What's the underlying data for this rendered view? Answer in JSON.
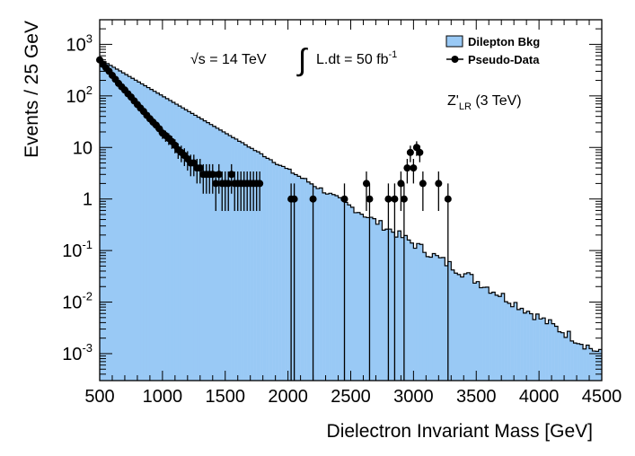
{
  "chart_data": {
    "type": "histogram",
    "title": "",
    "xlabel": "Dielectron Invariant Mass [GeV]",
    "ylabel": "Events / 25 GeV",
    "xlim": [
      500,
      4500
    ],
    "ylim": [
      0.0003,
      3000
    ],
    "yscale": "log",
    "bin_width": 25,
    "x_ticks": [
      500,
      1000,
      1500,
      2000,
      2500,
      3000,
      3500,
      4000,
      4500
    ],
    "x_tick_labels": [
      "500",
      "1000",
      "1500",
      "2000",
      "2500",
      "3000",
      "3500",
      "4000",
      "4500"
    ],
    "y_ticks": [
      0.001,
      0.01,
      0.1,
      1,
      10,
      100,
      1000
    ],
    "y_tick_labels": [
      {
        "mantissa": "10",
        "exponent": "-3"
      },
      {
        "mantissa": "10",
        "exponent": "-2"
      },
      {
        "mantissa": "10",
        "exponent": "-1"
      },
      {
        "mantissa": "1",
        "exponent": ""
      },
      {
        "mantissa": "10",
        "exponent": ""
      },
      {
        "mantissa": "10",
        "exponent": "2"
      },
      {
        "mantissa": "10",
        "exponent": "3"
      }
    ],
    "annotations": {
      "energy": "√s = 14 TeV",
      "lumi_integral": "∫",
      "lumi_text": "L.dt = 50 fb",
      "lumi_exp": "-1",
      "signal_base": "Z'",
      "signal_sub": "LR",
      "signal_rest": " (3 TeV)"
    },
    "legend": {
      "position": "top-right",
      "entries": [
        "Dilepton Bkg",
        "Pseudo-Data"
      ]
    },
    "colors": {
      "background_fill": "#99c9f5",
      "line": "#000000",
      "frame": "#000000"
    },
    "series": [
      {
        "name": "Dilepton Bkg",
        "kind": "step-filled",
        "model": "exponential",
        "y_at_500": 500,
        "decay_per_gev": 0.0033,
        "fluctuation": 0.22,
        "random_seed": 7,
        "y_floor": 0.00045
      },
      {
        "name": "Pseudo-Data",
        "kind": "points-with-errors",
        "points": [
          {
            "x": 500,
            "y": 500
          },
          {
            "x": 525,
            "y": 410
          },
          {
            "x": 550,
            "y": 350
          },
          {
            "x": 575,
            "y": 300
          },
          {
            "x": 600,
            "y": 250
          },
          {
            "x": 625,
            "y": 210
          },
          {
            "x": 650,
            "y": 175
          },
          {
            "x": 675,
            "y": 150
          },
          {
            "x": 700,
            "y": 130
          },
          {
            "x": 725,
            "y": 110
          },
          {
            "x": 750,
            "y": 95
          },
          {
            "x": 775,
            "y": 80
          },
          {
            "x": 800,
            "y": 68
          },
          {
            "x": 825,
            "y": 58
          },
          {
            "x": 850,
            "y": 50
          },
          {
            "x": 875,
            "y": 42
          },
          {
            "x": 900,
            "y": 36
          },
          {
            "x": 925,
            "y": 31
          },
          {
            "x": 950,
            "y": 27
          },
          {
            "x": 975,
            "y": 23
          },
          {
            "x": 1000,
            "y": 19
          },
          {
            "x": 1025,
            "y": 17
          },
          {
            "x": 1050,
            "y": 15
          },
          {
            "x": 1075,
            "y": 13
          },
          {
            "x": 1100,
            "y": 11
          },
          {
            "x": 1125,
            "y": 9
          },
          {
            "x": 1150,
            "y": 8
          },
          {
            "x": 1175,
            "y": 7
          },
          {
            "x": 1200,
            "y": 6
          },
          {
            "x": 1225,
            "y": 5
          },
          {
            "x": 1250,
            "y": 5
          },
          {
            "x": 1275,
            "y": 4
          },
          {
            "x": 1300,
            "y": 4
          },
          {
            "x": 1325,
            "y": 3
          },
          {
            "x": 1350,
            "y": 3
          },
          {
            "x": 1375,
            "y": 3
          },
          {
            "x": 1400,
            "y": 3
          },
          {
            "x": 1425,
            "y": 2
          },
          {
            "x": 1450,
            "y": 3
          },
          {
            "x": 1475,
            "y": 2
          },
          {
            "x": 1500,
            "y": 2
          },
          {
            "x": 1525,
            "y": 2
          },
          {
            "x": 1550,
            "y": 3
          },
          {
            "x": 1575,
            "y": 2
          },
          {
            "x": 1600,
            "y": 2
          },
          {
            "x": 1625,
            "y": 2
          },
          {
            "x": 1650,
            "y": 2
          },
          {
            "x": 1675,
            "y": 2
          },
          {
            "x": 1700,
            "y": 2
          },
          {
            "x": 1725,
            "y": 2
          },
          {
            "x": 1750,
            "y": 2
          },
          {
            "x": 1775,
            "y": 2
          },
          {
            "x": 2025,
            "y": 1
          },
          {
            "x": 2050,
            "y": 1
          },
          {
            "x": 2200,
            "y": 1
          },
          {
            "x": 2450,
            "y": 1
          },
          {
            "x": 2625,
            "y": 2
          },
          {
            "x": 2650,
            "y": 1
          },
          {
            "x": 2800,
            "y": 1
          },
          {
            "x": 2850,
            "y": 1
          },
          {
            "x": 2900,
            "y": 2
          },
          {
            "x": 2925,
            "y": 1
          },
          {
            "x": 2950,
            "y": 4
          },
          {
            "x": 2975,
            "y": 8
          },
          {
            "x": 3000,
            "y": 4
          },
          {
            "x": 3025,
            "y": 10
          },
          {
            "x": 3050,
            "y": 8
          },
          {
            "x": 3075,
            "y": 2
          },
          {
            "x": 3200,
            "y": 2
          },
          {
            "x": 3275,
            "y": 1
          }
        ]
      }
    ]
  }
}
